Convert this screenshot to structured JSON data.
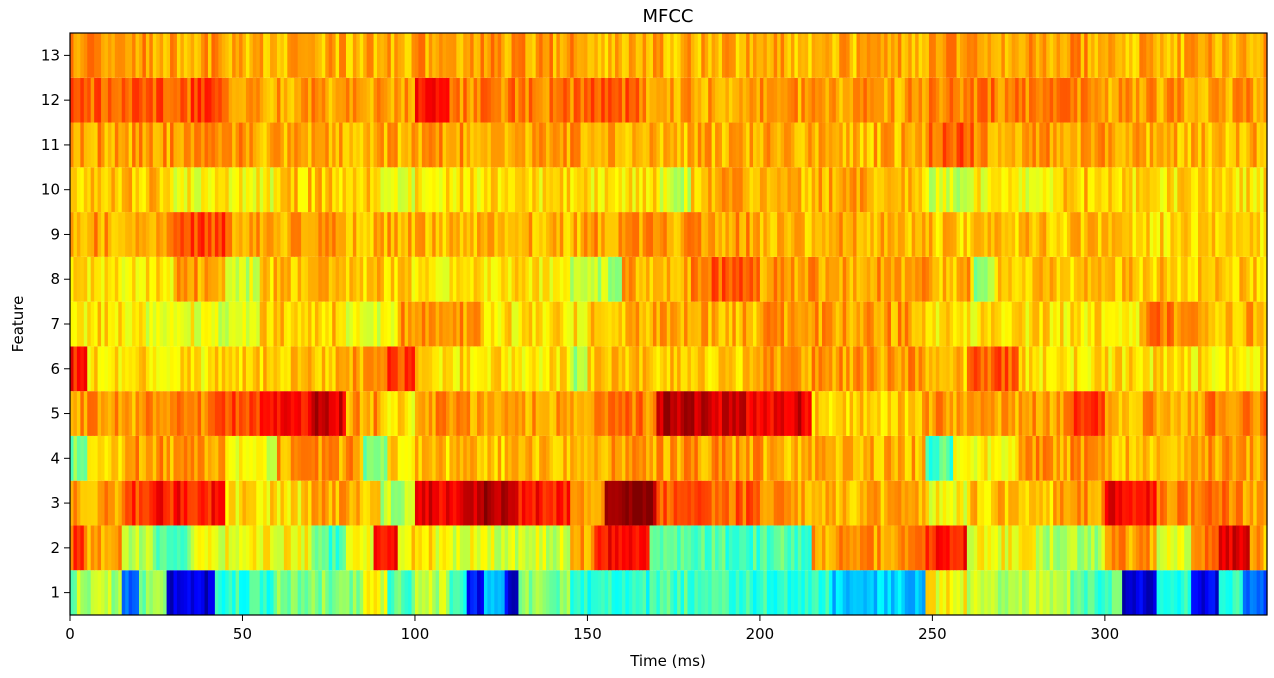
{
  "chart_data": {
    "type": "heatmap",
    "title": "MFCC",
    "xlabel": "Time (ms)",
    "ylabel": "Feature",
    "colormap": "jet",
    "xlim": [
      0,
      347
    ],
    "ylim": [
      0.5,
      13.5
    ],
    "x_ticks": [
      0,
      50,
      100,
      150,
      200,
      250,
      300
    ],
    "y_ticks": [
      1,
      2,
      3,
      4,
      5,
      6,
      7,
      8,
      9,
      10,
      11,
      12,
      13
    ],
    "n_time_frames": 347,
    "features": [
      {
        "feature": 1,
        "segments": [
          [
            0,
            2,
            0.45
          ],
          [
            2,
            15,
            0.55
          ],
          [
            15,
            20,
            0.2
          ],
          [
            20,
            28,
            0.5
          ],
          [
            28,
            42,
            0.08
          ],
          [
            42,
            60,
            0.42
          ],
          [
            60,
            85,
            0.5
          ],
          [
            85,
            92,
            0.6
          ],
          [
            92,
            100,
            0.45
          ],
          [
            100,
            110,
            0.55
          ],
          [
            110,
            115,
            0.42
          ],
          [
            115,
            120,
            0.12
          ],
          [
            120,
            126,
            0.3
          ],
          [
            126,
            130,
            0.1
          ],
          [
            130,
            145,
            0.5
          ],
          [
            145,
            170,
            0.42
          ],
          [
            170,
            195,
            0.45
          ],
          [
            195,
            220,
            0.42
          ],
          [
            220,
            248,
            0.32
          ],
          [
            248,
            260,
            0.62
          ],
          [
            260,
            290,
            0.55
          ],
          [
            290,
            305,
            0.45
          ],
          [
            305,
            315,
            0.08
          ],
          [
            315,
            325,
            0.42
          ],
          [
            325,
            333,
            0.1
          ],
          [
            333,
            340,
            0.42
          ],
          [
            340,
            347,
            0.2
          ]
        ]
      },
      {
        "feature": 2,
        "segments": [
          [
            0,
            5,
            0.8
          ],
          [
            5,
            15,
            0.72
          ],
          [
            15,
            25,
            0.55
          ],
          [
            25,
            35,
            0.45
          ],
          [
            35,
            45,
            0.6
          ],
          [
            45,
            70,
            0.62
          ],
          [
            70,
            80,
            0.45
          ],
          [
            80,
            88,
            0.6
          ],
          [
            88,
            95,
            0.88
          ],
          [
            95,
            105,
            0.65
          ],
          [
            105,
            120,
            0.6
          ],
          [
            120,
            145,
            0.58
          ],
          [
            145,
            152,
            0.72
          ],
          [
            152,
            168,
            0.88
          ],
          [
            168,
            185,
            0.45
          ],
          [
            185,
            215,
            0.45
          ],
          [
            215,
            248,
            0.72
          ],
          [
            248,
            260,
            0.85
          ],
          [
            260,
            280,
            0.62
          ],
          [
            280,
            300,
            0.55
          ],
          [
            300,
            315,
            0.72
          ],
          [
            315,
            325,
            0.6
          ],
          [
            325,
            333,
            0.75
          ],
          [
            333,
            342,
            0.9
          ],
          [
            342,
            347,
            0.7
          ]
        ]
      },
      {
        "feature": 3,
        "segments": [
          [
            0,
            15,
            0.72
          ],
          [
            15,
            25,
            0.82
          ],
          [
            25,
            45,
            0.85
          ],
          [
            45,
            70,
            0.65
          ],
          [
            70,
            90,
            0.7
          ],
          [
            90,
            100,
            0.55
          ],
          [
            100,
            115,
            0.9
          ],
          [
            115,
            130,
            0.95
          ],
          [
            130,
            145,
            0.85
          ],
          [
            145,
            155,
            0.72
          ],
          [
            155,
            170,
            0.98
          ],
          [
            170,
            200,
            0.78
          ],
          [
            200,
            215,
            0.72
          ],
          [
            215,
            248,
            0.7
          ],
          [
            248,
            260,
            0.62
          ],
          [
            260,
            285,
            0.68
          ],
          [
            285,
            300,
            0.72
          ],
          [
            300,
            315,
            0.88
          ],
          [
            315,
            335,
            0.75
          ],
          [
            335,
            347,
            0.72
          ]
        ]
      },
      {
        "feature": 4,
        "segments": [
          [
            0,
            5,
            0.5
          ],
          [
            5,
            15,
            0.68
          ],
          [
            15,
            45,
            0.72
          ],
          [
            45,
            60,
            0.6
          ],
          [
            60,
            85,
            0.72
          ],
          [
            85,
            92,
            0.5
          ],
          [
            92,
            100,
            0.65
          ],
          [
            100,
            150,
            0.68
          ],
          [
            150,
            200,
            0.72
          ],
          [
            200,
            248,
            0.7
          ],
          [
            248,
            256,
            0.45
          ],
          [
            256,
            275,
            0.62
          ],
          [
            275,
            300,
            0.72
          ],
          [
            300,
            320,
            0.68
          ],
          [
            320,
            347,
            0.72
          ]
        ]
      },
      {
        "feature": 5,
        "segments": [
          [
            0,
            20,
            0.72
          ],
          [
            20,
            40,
            0.75
          ],
          [
            40,
            55,
            0.82
          ],
          [
            55,
            70,
            0.85
          ],
          [
            70,
            80,
            0.92
          ],
          [
            80,
            90,
            0.72
          ],
          [
            90,
            100,
            0.65
          ],
          [
            100,
            150,
            0.72
          ],
          [
            150,
            170,
            0.75
          ],
          [
            170,
            185,
            0.95
          ],
          [
            185,
            215,
            0.9
          ],
          [
            215,
            248,
            0.68
          ],
          [
            248,
            290,
            0.72
          ],
          [
            290,
            300,
            0.82
          ],
          [
            300,
            310,
            0.68
          ],
          [
            310,
            330,
            0.72
          ],
          [
            330,
            347,
            0.75
          ]
        ]
      },
      {
        "feature": 6,
        "segments": [
          [
            0,
            5,
            0.85
          ],
          [
            5,
            40,
            0.65
          ],
          [
            40,
            80,
            0.68
          ],
          [
            80,
            92,
            0.72
          ],
          [
            92,
            100,
            0.82
          ],
          [
            100,
            145,
            0.65
          ],
          [
            145,
            150,
            0.55
          ],
          [
            150,
            200,
            0.68
          ],
          [
            200,
            248,
            0.72
          ],
          [
            248,
            260,
            0.68
          ],
          [
            260,
            275,
            0.78
          ],
          [
            275,
            347,
            0.65
          ]
        ]
      },
      {
        "feature": 7,
        "segments": [
          [
            0,
            20,
            0.65
          ],
          [
            20,
            40,
            0.62
          ],
          [
            40,
            55,
            0.58
          ],
          [
            55,
            80,
            0.68
          ],
          [
            80,
            95,
            0.6
          ],
          [
            95,
            120,
            0.72
          ],
          [
            120,
            150,
            0.65
          ],
          [
            150,
            200,
            0.7
          ],
          [
            200,
            248,
            0.72
          ],
          [
            248,
            300,
            0.65
          ],
          [
            300,
            310,
            0.62
          ],
          [
            310,
            320,
            0.75
          ],
          [
            320,
            347,
            0.7
          ]
        ]
      },
      {
        "feature": 8,
        "segments": [
          [
            0,
            30,
            0.65
          ],
          [
            30,
            45,
            0.72
          ],
          [
            45,
            55,
            0.58
          ],
          [
            55,
            90,
            0.68
          ],
          [
            90,
            145,
            0.65
          ],
          [
            145,
            160,
            0.55
          ],
          [
            160,
            180,
            0.7
          ],
          [
            180,
            200,
            0.78
          ],
          [
            200,
            248,
            0.72
          ],
          [
            248,
            262,
            0.7
          ],
          [
            262,
            268,
            0.5
          ],
          [
            268,
            347,
            0.68
          ]
        ]
      },
      {
        "feature": 9,
        "segments": [
          [
            0,
            30,
            0.72
          ],
          [
            30,
            45,
            0.8
          ],
          [
            45,
            80,
            0.72
          ],
          [
            80,
            150,
            0.7
          ],
          [
            150,
            200,
            0.72
          ],
          [
            200,
            248,
            0.7
          ],
          [
            248,
            300,
            0.68
          ],
          [
            300,
            347,
            0.66
          ]
        ]
      },
      {
        "feature": 10,
        "segments": [
          [
            0,
            30,
            0.68
          ],
          [
            30,
            60,
            0.62
          ],
          [
            60,
            90,
            0.68
          ],
          [
            90,
            100,
            0.6
          ],
          [
            100,
            170,
            0.65
          ],
          [
            170,
            180,
            0.58
          ],
          [
            180,
            248,
            0.7
          ],
          [
            248,
            260,
            0.58
          ],
          [
            260,
            285,
            0.62
          ],
          [
            285,
            300,
            0.68
          ],
          [
            300,
            347,
            0.65
          ]
        ]
      },
      {
        "feature": 11,
        "segments": [
          [
            0,
            50,
            0.72
          ],
          [
            50,
            100,
            0.7
          ],
          [
            100,
            150,
            0.72
          ],
          [
            150,
            248,
            0.7
          ],
          [
            248,
            262,
            0.78
          ],
          [
            262,
            300,
            0.72
          ],
          [
            300,
            347,
            0.7
          ]
        ]
      },
      {
        "feature": 12,
        "segments": [
          [
            0,
            35,
            0.78
          ],
          [
            35,
            45,
            0.82
          ],
          [
            45,
            100,
            0.72
          ],
          [
            100,
            110,
            0.85
          ],
          [
            110,
            150,
            0.75
          ],
          [
            150,
            165,
            0.78
          ],
          [
            165,
            248,
            0.72
          ],
          [
            248,
            300,
            0.75
          ],
          [
            300,
            347,
            0.72
          ]
        ]
      },
      {
        "feature": 13,
        "segments": [
          [
            0,
            50,
            0.72
          ],
          [
            50,
            100,
            0.7
          ],
          [
            100,
            150,
            0.72
          ],
          [
            150,
            250,
            0.7
          ],
          [
            250,
            300,
            0.72
          ],
          [
            300,
            347,
            0.7
          ]
        ]
      }
    ]
  }
}
